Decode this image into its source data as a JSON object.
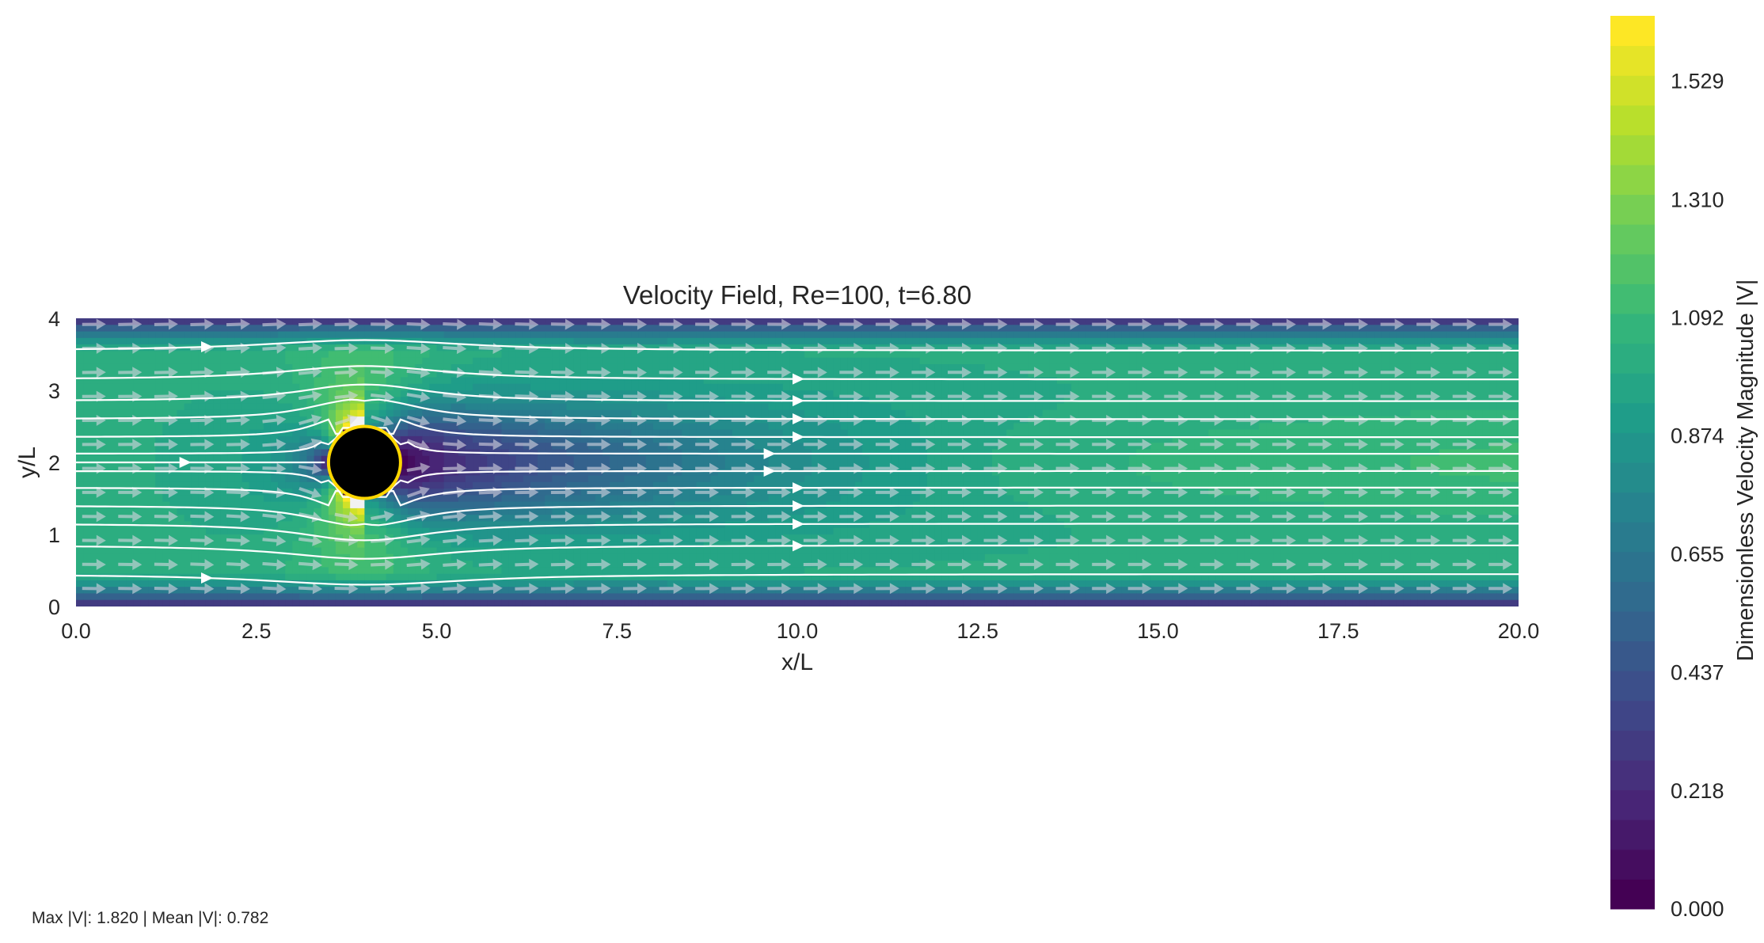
{
  "chart_data": {
    "type": "heatmap",
    "title": "Velocity Field, Re=100, t=6.80",
    "xlabel": "x/L",
    "ylabel": "y/L",
    "xlim": [
      0,
      20
    ],
    "ylim": [
      0,
      4
    ],
    "x_ticks": [
      "0.0",
      "2.5",
      "5.0",
      "7.5",
      "10.0",
      "12.5",
      "15.0",
      "17.5",
      "20.0"
    ],
    "y_ticks": [
      "0",
      "1",
      "2",
      "3",
      "4"
    ],
    "colormap": "viridis",
    "colorbar": {
      "label": "Dimensionless Velocity Magnitude |V|",
      "range": [
        0.0,
        1.65
      ],
      "ticks": [
        0.0,
        0.218,
        0.437,
        0.655,
        0.874,
        1.092,
        1.31,
        1.529
      ],
      "tick_labels": [
        "0.000",
        "0.218",
        "0.437",
        "0.655",
        "0.874",
        "1.092",
        "1.310",
        "1.529"
      ],
      "levels": 30
    },
    "cylinder": {
      "center": [
        4.0,
        2.0
      ],
      "radius": 0.5,
      "fill": "#000000",
      "edge": "#FFD700"
    },
    "overlays": [
      "quiver",
      "streamlines"
    ],
    "grid": false
  },
  "stats": {
    "text": "Max |V|: 1.820 | Mean |V|: 0.782"
  }
}
